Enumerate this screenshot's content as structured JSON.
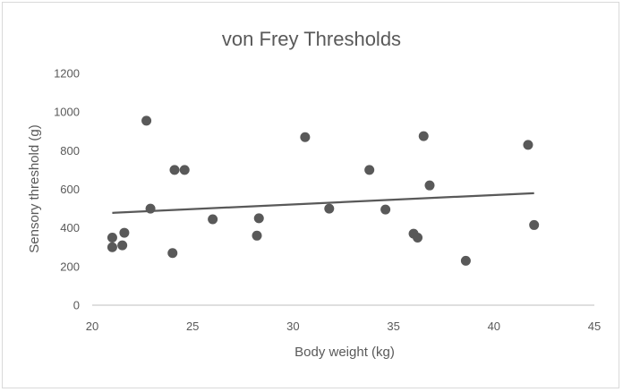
{
  "chart_data": {
    "type": "scatter",
    "title": "von Frey Thresholds",
    "xlabel": "Body weight (kg)",
    "ylabel": "Sensory  threshold (g)",
    "xlim": [
      20,
      45
    ],
    "ylim": [
      0,
      1200
    ],
    "x_ticks": [
      "20",
      "25",
      "30",
      "35",
      "40",
      "45"
    ],
    "y_ticks": [
      "0",
      "200",
      "400",
      "600",
      "800",
      "1000",
      "1200"
    ],
    "grid": false,
    "legend": "none",
    "colors": {
      "points": "#595959",
      "trendline": "#595959",
      "axis": "#bfbfbf",
      "text": "#595959"
    },
    "series": [
      {
        "points": [
          {
            "x": 21.0,
            "y": 350
          },
          {
            "x": 21.0,
            "y": 300
          },
          {
            "x": 21.5,
            "y": 310
          },
          {
            "x": 21.6,
            "y": 375
          },
          {
            "x": 22.7,
            "y": 955
          },
          {
            "x": 22.9,
            "y": 500
          },
          {
            "x": 24.0,
            "y": 270
          },
          {
            "x": 24.1,
            "y": 700
          },
          {
            "x": 24.6,
            "y": 700
          },
          {
            "x": 26.0,
            "y": 445
          },
          {
            "x": 28.2,
            "y": 360
          },
          {
            "x": 28.3,
            "y": 450
          },
          {
            "x": 30.6,
            "y": 870
          },
          {
            "x": 31.8,
            "y": 500
          },
          {
            "x": 33.8,
            "y": 700
          },
          {
            "x": 34.6,
            "y": 495
          },
          {
            "x": 36.0,
            "y": 370
          },
          {
            "x": 36.2,
            "y": 350
          },
          {
            "x": 36.5,
            "y": 875
          },
          {
            "x": 36.8,
            "y": 620
          },
          {
            "x": 38.6,
            "y": 230
          },
          {
            "x": 41.7,
            "y": 830
          },
          {
            "x": 42.0,
            "y": 415
          }
        ]
      }
    ],
    "trendline": {
      "x": [
        21.0,
        42.0
      ],
      "y": [
        478,
        580
      ]
    }
  }
}
